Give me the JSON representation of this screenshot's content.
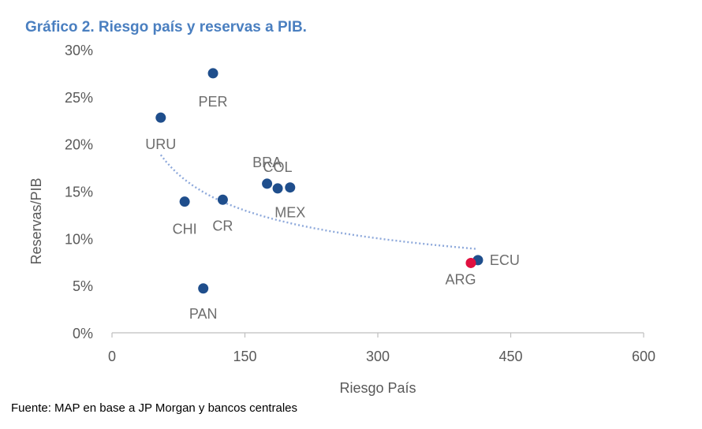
{
  "title": "Gráfico 2. Riesgo país y reservas a PIB.",
  "source": "Fuente: MAP en base a JP Morgan y bancos centrales",
  "colors": {
    "point": "#1f4e8c",
    "highlight": "#e0103f",
    "trend": "#8ea9db",
    "axis": "#bfbfbf",
    "label": "#6d6d6d"
  },
  "chart_data": {
    "type": "scatter",
    "title": "Gráfico 2. Riesgo país y reservas a PIB.",
    "xlabel": "Riesgo País",
    "ylabel": "Reservas/PIB",
    "xlim": [
      0,
      600
    ],
    "ylim": [
      0,
      30
    ],
    "xticks": [
      "0",
      "150",
      "300",
      "450",
      "600"
    ],
    "yticks": [
      "0%",
      "5%",
      "10%",
      "15%",
      "20%",
      "25%",
      "30%"
    ],
    "grid": false,
    "trendline": {
      "type": "power",
      "x_range": [
        55,
        412
      ],
      "style": "dotted"
    },
    "points": [
      {
        "label": "PER",
        "x": 114,
        "y": 27.5
      },
      {
        "label": "URU",
        "x": 55,
        "y": 22.8
      },
      {
        "label": "CHI",
        "x": 82,
        "y": 13.9
      },
      {
        "label": "CR",
        "x": 125,
        "y": 14.1
      },
      {
        "label": "PAN",
        "x": 103,
        "y": 4.7
      },
      {
        "label": "BRA",
        "x": 175,
        "y": 15.8
      },
      {
        "label": "COL",
        "x": 187,
        "y": 15.3
      },
      {
        "label": "MEX",
        "x": 201,
        "y": 15.4
      },
      {
        "label": "ECU",
        "x": 413,
        "y": 7.7
      },
      {
        "label": "ARG",
        "x": 405,
        "y": 7.4,
        "highlight": true
      }
    ]
  }
}
